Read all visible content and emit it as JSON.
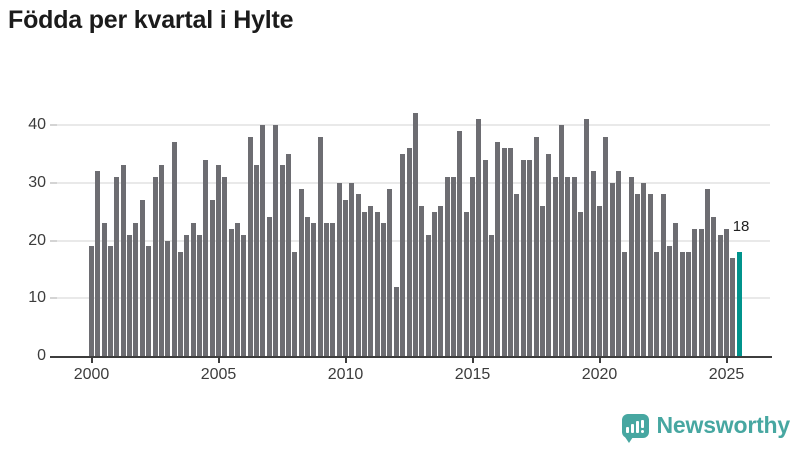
{
  "title": "Födda per kvartal i Hylte",
  "chart_data": {
    "type": "bar",
    "title": "Födda per kvartal i Hylte",
    "x_tick_labels": [
      "2000",
      "2005",
      "2010",
      "2015",
      "2020",
      "2025"
    ],
    "y_tick_labels": [
      0,
      10,
      20,
      30,
      40
    ],
    "ylim": [
      0,
      44
    ],
    "start": {
      "year": 2000,
      "quarter": 1
    },
    "frequency": "quarterly",
    "series": [
      {
        "name": "Födda",
        "values": [
          19,
          32,
          23,
          19,
          31,
          33,
          21,
          23,
          27,
          19,
          31,
          33,
          20,
          37,
          18,
          21,
          23,
          21,
          34,
          27,
          33,
          31,
          22,
          23,
          21,
          38,
          33,
          40,
          24,
          40,
          33,
          35,
          18,
          29,
          24,
          23,
          38,
          23,
          23,
          30,
          27,
          30,
          28,
          25,
          26,
          25,
          23,
          29,
          12,
          35,
          36,
          42,
          26,
          21,
          25,
          26,
          31,
          31,
          39,
          25,
          31,
          41,
          34,
          21,
          37,
          36,
          36,
          28,
          34,
          34,
          38,
          26,
          35,
          31,
          40,
          31,
          31,
          25,
          41,
          32,
          26,
          38,
          30,
          32,
          18,
          31,
          28,
          30,
          28,
          18,
          28,
          19,
          23,
          18,
          18,
          22,
          22,
          29,
          24,
          21,
          22,
          17,
          18
        ]
      }
    ],
    "highlight_last_bar": true,
    "annotation": {
      "text": "18"
    },
    "legend": "none",
    "grid": "horizontal",
    "colors": {
      "bar": "#6d6d72",
      "highlight": "#00938c"
    }
  },
  "branding": {
    "logo_text": "Newsworthy",
    "logo_color": "#47a7a1"
  }
}
